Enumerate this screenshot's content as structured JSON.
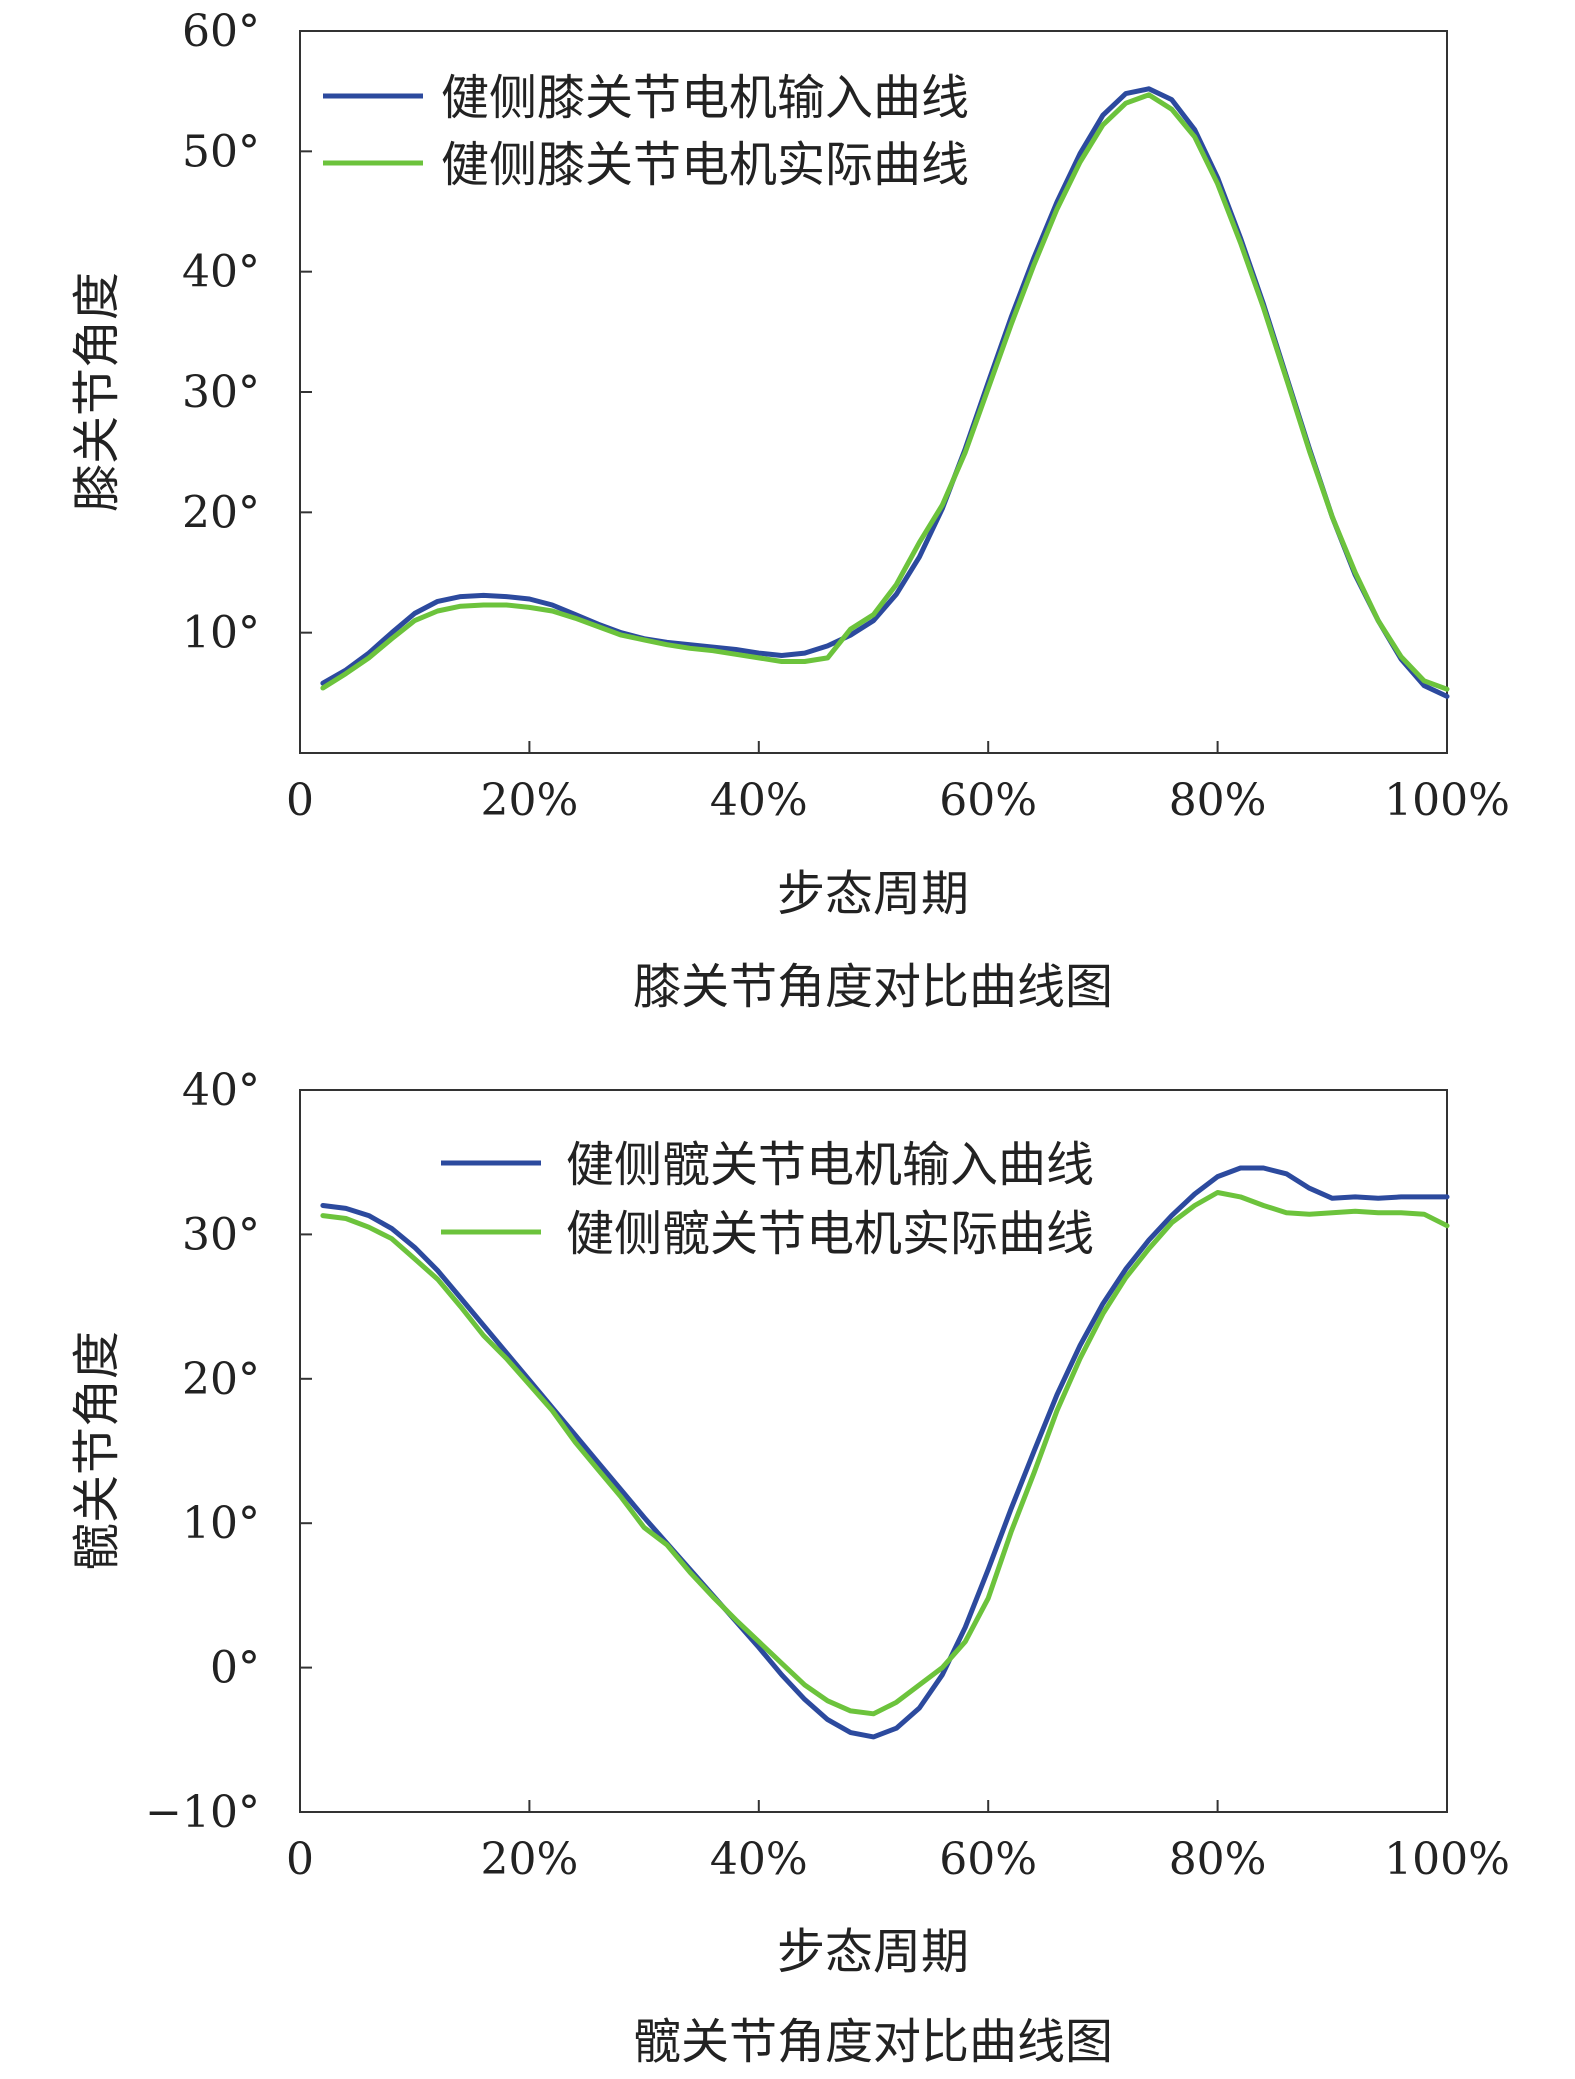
{
  "chart_data": [
    {
      "type": "line",
      "id": "knee",
      "caption": "膝关节角度对比曲线图",
      "xlabel": "步态周期",
      "ylabel": "膝关节角度",
      "xlim": [
        0,
        100
      ],
      "ylim": [
        0,
        60
      ],
      "x_ticks": [
        0,
        20,
        40,
        60,
        80,
        100
      ],
      "x_tick_labels": [
        "0",
        "20%",
        "40%",
        "60%",
        "80%",
        "100%"
      ],
      "y_ticks": [
        10,
        20,
        30,
        40,
        50,
        60
      ],
      "y_tick_labels": [
        "10°",
        "20°",
        "30°",
        "40°",
        "50°",
        "60°"
      ],
      "legend_position": "top-left",
      "grid": false,
      "x": [
        2,
        4,
        6,
        8,
        10,
        12,
        14,
        16,
        18,
        20,
        22,
        24,
        26,
        28,
        30,
        32,
        34,
        36,
        38,
        40,
        42,
        44,
        46,
        48,
        50,
        52,
        54,
        56,
        58,
        60,
        62,
        64,
        66,
        68,
        70,
        72,
        74,
        76,
        78,
        80,
        82,
        84,
        86,
        88,
        90,
        92,
        94,
        96,
        98,
        100
      ],
      "series": [
        {
          "name": "健侧膝关节电机输入曲线",
          "color": "#2c4a9e",
          "values": [
            5.8,
            6.9,
            8.3,
            10.0,
            11.6,
            12.6,
            13.0,
            13.1,
            13.0,
            12.8,
            12.3,
            11.5,
            10.7,
            10.0,
            9.5,
            9.2,
            9.0,
            8.8,
            8.6,
            8.3,
            8.1,
            8.3,
            8.9,
            9.8,
            11.0,
            13.2,
            16.3,
            20.3,
            25.3,
            30.8,
            36.2,
            41.2,
            45.8,
            49.8,
            53.0,
            54.8,
            55.2,
            54.3,
            51.8,
            47.8,
            42.8,
            37.3,
            31.3,
            25.3,
            19.6,
            14.8,
            11.0,
            7.8,
            5.6,
            4.7
          ]
        },
        {
          "name": "健侧膝关节电机实际曲线",
          "color": "#6cc33c",
          "values": [
            5.4,
            6.6,
            7.9,
            9.5,
            11.0,
            11.8,
            12.2,
            12.3,
            12.3,
            12.1,
            11.8,
            11.2,
            10.5,
            9.8,
            9.4,
            9.0,
            8.7,
            8.5,
            8.2,
            7.9,
            7.6,
            7.6,
            7.9,
            10.3,
            11.5,
            14.0,
            17.5,
            20.6,
            25.0,
            30.3,
            35.6,
            40.6,
            45.2,
            49.1,
            52.2,
            54.0,
            54.7,
            53.5,
            51.2,
            47.3,
            42.4,
            37.0,
            31.1,
            25.1,
            19.6,
            15.0,
            11.0,
            8.0,
            6.0,
            5.3
          ]
        }
      ]
    },
    {
      "type": "line",
      "id": "hip",
      "caption": "髋关节角度对比曲线图",
      "xlabel": "步态周期",
      "ylabel": "髋关节角度",
      "xlim": [
        0,
        100
      ],
      "ylim": [
        -10,
        40
      ],
      "x_ticks": [
        0,
        20,
        40,
        60,
        80,
        100
      ],
      "x_tick_labels": [
        "0",
        "20%",
        "40%",
        "60%",
        "80%",
        "100%"
      ],
      "y_ticks": [
        -10,
        0,
        10,
        20,
        30,
        40
      ],
      "y_tick_labels": [
        "−10°",
        "0°",
        "10°",
        "20°",
        "30°",
        "40°"
      ],
      "legend_position": "top-center",
      "grid": false,
      "x": [
        2,
        4,
        6,
        8,
        10,
        12,
        14,
        16,
        18,
        20,
        22,
        24,
        26,
        28,
        30,
        32,
        34,
        36,
        38,
        40,
        42,
        44,
        46,
        48,
        50,
        52,
        54,
        56,
        58,
        60,
        62,
        64,
        66,
        68,
        70,
        72,
        74,
        76,
        78,
        80,
        82,
        84,
        86,
        88,
        90,
        92,
        94,
        96,
        98,
        100
      ],
      "series": [
        {
          "name": "健侧髋关节电机输入曲线",
          "color": "#2c4a9e",
          "values": [
            32.0,
            31.8,
            31.3,
            30.4,
            29.1,
            27.5,
            25.6,
            23.7,
            21.8,
            19.9,
            18.0,
            16.1,
            14.2,
            12.3,
            10.4,
            8.6,
            6.8,
            5.0,
            3.2,
            1.4,
            -0.5,
            -2.2,
            -3.6,
            -4.5,
            -4.8,
            -4.2,
            -2.8,
            -0.5,
            2.8,
            6.8,
            11.0,
            15.0,
            18.9,
            22.3,
            25.2,
            27.6,
            29.6,
            31.3,
            32.8,
            34.0,
            34.6,
            34.6,
            34.2,
            33.2,
            32.5,
            32.6,
            32.5,
            32.6,
            32.6,
            32.6
          ]
        },
        {
          "name": "健侧髋关节电机实际曲线",
          "color": "#6cc33c",
          "values": [
            31.3,
            31.1,
            30.5,
            29.7,
            28.3,
            26.9,
            25.0,
            23.0,
            21.4,
            19.6,
            17.8,
            15.6,
            13.7,
            11.8,
            9.7,
            8.5,
            6.6,
            4.9,
            3.3,
            1.8,
            0.3,
            -1.2,
            -2.3,
            -3.0,
            -3.2,
            -2.4,
            -1.2,
            0.0,
            1.8,
            4.8,
            9.4,
            13.5,
            17.8,
            21.4,
            24.5,
            27.0,
            29.0,
            30.8,
            32.0,
            32.9,
            32.6,
            32.0,
            31.5,
            31.4,
            31.5,
            31.6,
            31.5,
            31.5,
            31.4,
            30.6
          ]
        }
      ]
    }
  ]
}
